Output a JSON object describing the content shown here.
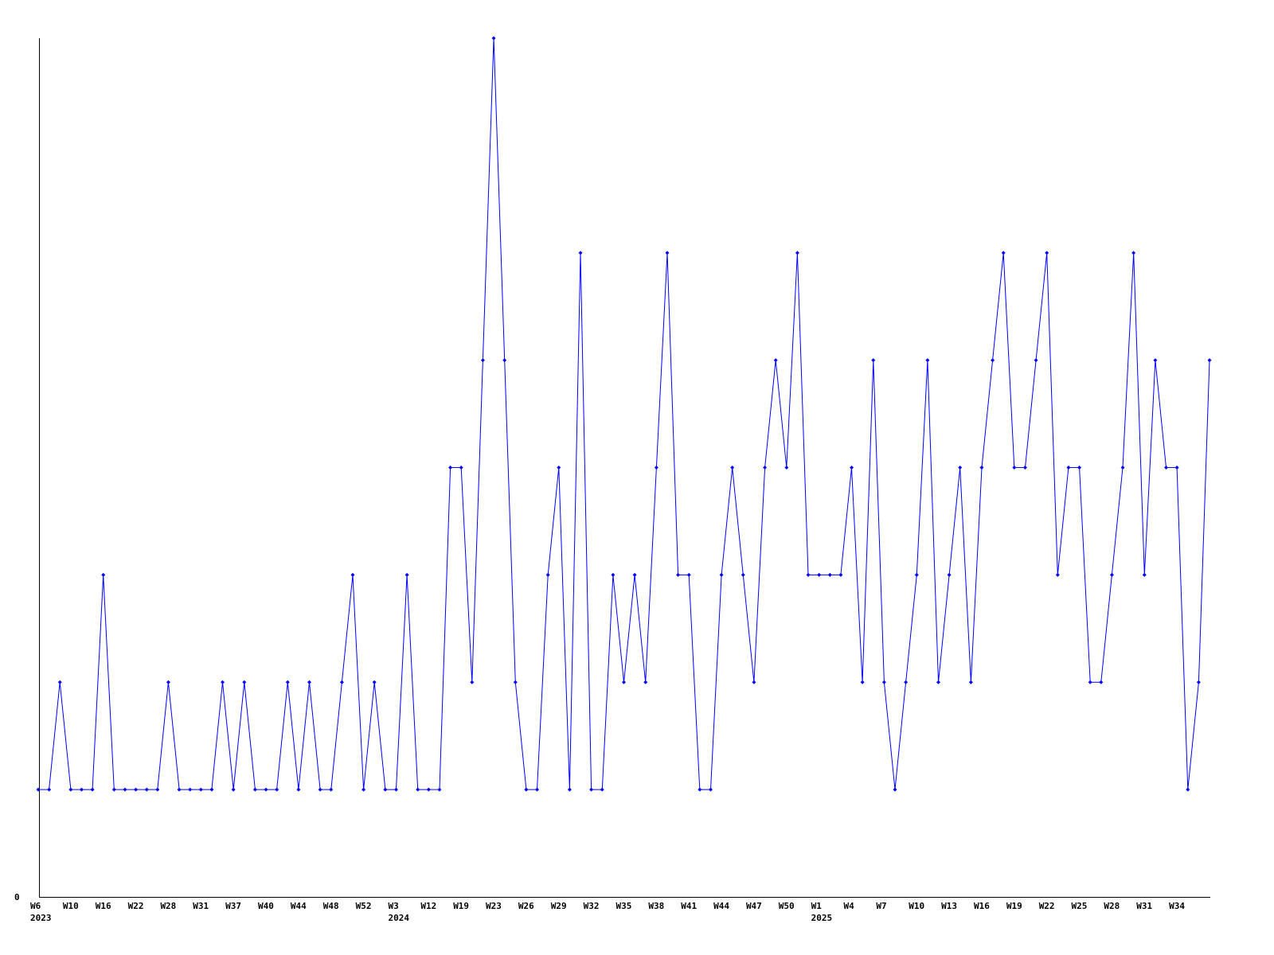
{
  "chart_data": {
    "type": "line",
    "title": "",
    "xlabel": "",
    "ylabel": "",
    "ylim": [
      0,
      8
    ],
    "y_tick_labels": [
      {
        "value": 0,
        "label": "0"
      }
    ],
    "grid": false,
    "legend": "none",
    "line_color": "#0000ff",
    "axis_color": "#000000",
    "markers": "small-diamond",
    "values": [
      1,
      1,
      2,
      1,
      1,
      1,
      3,
      1,
      1,
      1,
      1,
      1,
      2,
      1,
      1,
      1,
      1,
      2,
      1,
      2,
      1,
      1,
      1,
      2,
      1,
      2,
      1,
      1,
      2,
      3,
      1,
      2,
      1,
      1,
      3,
      1,
      1,
      1,
      4,
      4,
      2,
      5,
      8,
      5,
      2,
      1,
      1,
      3,
      4,
      1,
      6,
      1,
      1,
      3,
      2,
      3,
      2,
      4,
      6,
      3,
      3,
      1,
      1,
      3,
      4,
      3,
      2,
      4,
      5,
      4,
      6,
      3,
      3,
      3,
      3,
      4,
      2,
      5,
      2,
      1,
      2,
      3,
      5,
      2,
      3,
      4,
      2,
      4,
      5,
      6,
      4,
      4,
      5,
      6,
      3,
      4,
      4,
      2,
      2,
      3,
      4,
      6,
      3,
      5,
      4,
      4,
      1,
      2,
      5
    ],
    "x_tick_every": 3,
    "x_tick_labels": [
      "W6",
      "W10",
      "W16",
      "W22",
      "W28",
      "W31",
      "W37",
      "W40",
      "W44",
      "W48",
      "W52",
      "W3",
      "W12",
      "W19",
      "W23",
      "W26",
      "W29",
      "W32",
      "W35",
      "W38",
      "W41",
      "W44",
      "W47",
      "W50",
      "W1",
      "W4",
      "W7",
      "W10",
      "W13",
      "W16",
      "W19",
      "W22",
      "W25",
      "W28",
      "W31",
      "W34"
    ],
    "year_labels": [
      {
        "tick_index": 0,
        "label": "2023"
      },
      {
        "tick_index": 11,
        "label": "2024"
      },
      {
        "tick_index": 24,
        "label": "2025"
      }
    ]
  }
}
